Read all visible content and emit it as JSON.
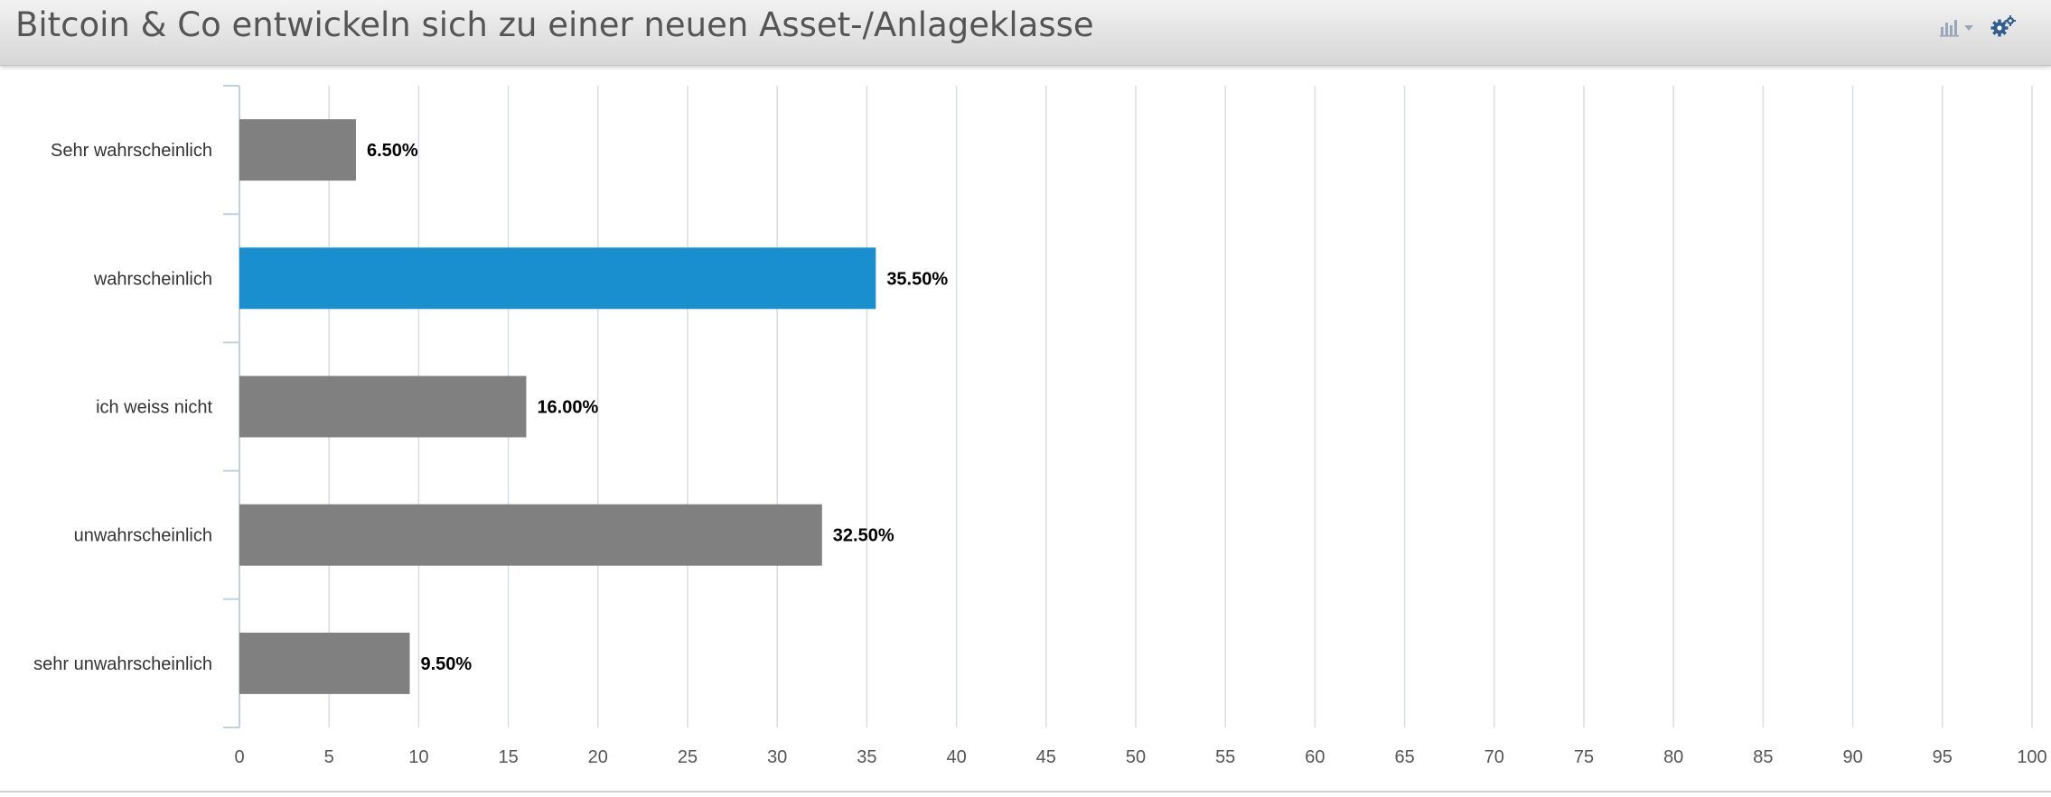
{
  "header": {
    "title": "Bitcoin & Co entwickeln sich zu einer neuen Asset-/Anlageklasse",
    "chart_type_icon": "bar-chart-icon",
    "chart_type_dropdown_icon": "caret-down-icon",
    "settings_icon": "gears-icon"
  },
  "chart_data": {
    "type": "bar",
    "orientation": "horizontal",
    "categories": [
      "Sehr wahrscheinlich",
      "wahrscheinlich",
      "ich weiss nicht",
      "unwahrscheinlich",
      "sehr unwahrscheinlich"
    ],
    "values": [
      6.5,
      35.5,
      16.0,
      32.5,
      9.5
    ],
    "value_labels": [
      "6.50%",
      "35.50%",
      "16.00%",
      "32.50%",
      "9.50%"
    ],
    "highlighted_index": 1,
    "colors": {
      "bar": "#808080",
      "highlight": "#1a8fcf",
      "grid": "#d8dde3",
      "axis": "#c0d0e0"
    },
    "xlim": [
      0,
      100
    ],
    "xticks": [
      0,
      5,
      10,
      15,
      20,
      25,
      30,
      35,
      40,
      45,
      50,
      55,
      60,
      65,
      70,
      75,
      80,
      85,
      90,
      95,
      100
    ],
    "grid": true
  }
}
